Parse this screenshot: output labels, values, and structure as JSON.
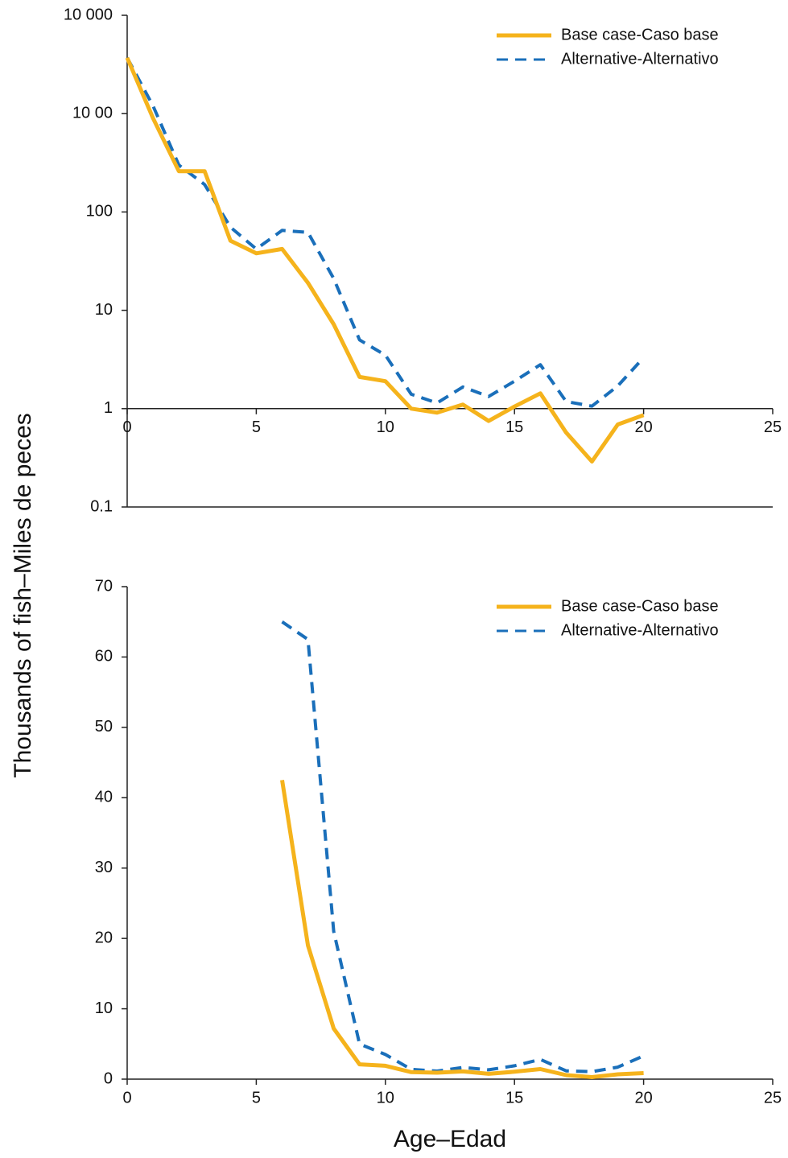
{
  "chart_data": [
    {
      "type": "line",
      "y_label": "Thousands of fish–Miles de peces",
      "log_y": true,
      "x_axis_at": 1,
      "legend": "upper right",
      "x": [
        0,
        1,
        2,
        3,
        4,
        5,
        6,
        7,
        8,
        9,
        10,
        11,
        12,
        13,
        14,
        15,
        16,
        17,
        18,
        19,
        20
      ],
      "series": [
        {
          "name": "Base case-Caso base",
          "color": "#f5b31c",
          "dash": false,
          "values": [
            3700,
            900,
            260,
            260,
            51,
            38,
            42,
            19,
            7.2,
            2.1,
            1.9,
            1.0,
            0.91,
            1.1,
            0.75,
            1.05,
            1.43,
            0.57,
            0.29,
            0.69,
            0.86
          ]
        },
        {
          "name": "Alternative-Alternativo",
          "color": "#1a6fba",
          "dash": true,
          "values": [
            3700,
            1200,
            300,
            190,
            70,
            42,
            65,
            62,
            21,
            5.0,
            3.5,
            1.4,
            1.14,
            1.66,
            1.33,
            1.9,
            2.8,
            1.18,
            1.06,
            1.7,
            3.3
          ]
        }
      ],
      "xlim": [
        0,
        25
      ],
      "xticks": [
        0,
        5,
        10,
        15,
        20,
        25
      ],
      "ylim": [
        0.1,
        10000
      ],
      "yticks": [
        {
          "value": 10000,
          "label": "10 000"
        },
        {
          "value": 1000,
          "label": "10 00"
        },
        100,
        10,
        1,
        0.1
      ]
    },
    {
      "type": "line",
      "x_label": "Age–Edad",
      "log_y": false,
      "legend": "upper right",
      "x": [
        6,
        7,
        8,
        9,
        10,
        11,
        12,
        13,
        14,
        15,
        16,
        17,
        18,
        19,
        20
      ],
      "series": [
        {
          "name": "Base case-Caso base",
          "color": "#f5b31c",
          "dash": false,
          "values": [
            42.5,
            19,
            7.2,
            2.1,
            1.9,
            1.0,
            0.91,
            1.1,
            0.75,
            1.05,
            1.43,
            0.57,
            0.29,
            0.69,
            0.86
          ]
        },
        {
          "name": "Alternative-Alternativo",
          "color": "#1a6fba",
          "dash": true,
          "values": [
            65,
            62.5,
            21,
            5.0,
            3.5,
            1.4,
            1.14,
            1.66,
            1.33,
            1.9,
            2.8,
            1.18,
            1.06,
            1.7,
            3.3
          ]
        }
      ],
      "xlim": [
        0,
        25
      ],
      "xticks": [
        0,
        5,
        10,
        15,
        20,
        25
      ],
      "ylim": [
        0,
        70
      ],
      "yticks": [
        0,
        10,
        20,
        30,
        40,
        50,
        60,
        70
      ]
    }
  ]
}
